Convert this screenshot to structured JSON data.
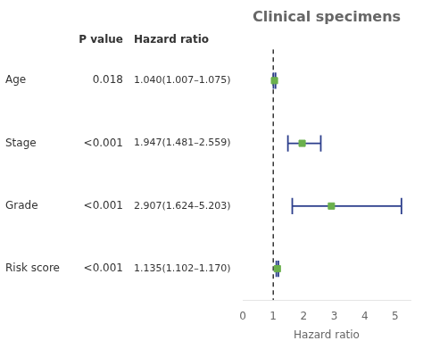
{
  "chart_data": {
    "type": "forest",
    "title": "Clinical specimens",
    "xlabel": "Hazard ratio",
    "categories": [
      "Age",
      "Stage",
      "Grade",
      "Risk score"
    ],
    "values": [
      1.04,
      1.947,
      2.907,
      1.135
    ],
    "lo": [
      1.007,
      1.481,
      1.624,
      1.102
    ],
    "hi": [
      1.075,
      2.559,
      5.203,
      1.17
    ],
    "value_labels_header": "Hazard ratio",
    "value_labels": [
      "1.040(1.007–1.075)",
      "1.947(1.481–2.559)",
      "2.907(1.624–5.203)",
      "1.135(1.102–1.170)"
    ],
    "p_values_header": "P value",
    "p_values": [
      "0.018",
      "<0.001",
      "<0.001",
      "<0.001"
    ],
    "reference_line": 1.0,
    "xlim": [
      0,
      5.5
    ],
    "xticks": [
      0,
      1,
      2,
      3,
      4,
      5
    ],
    "color": "#6ab04c",
    "error_bar_color": "#2c3e8c",
    "grid": false,
    "tick_labels": "x"
  }
}
